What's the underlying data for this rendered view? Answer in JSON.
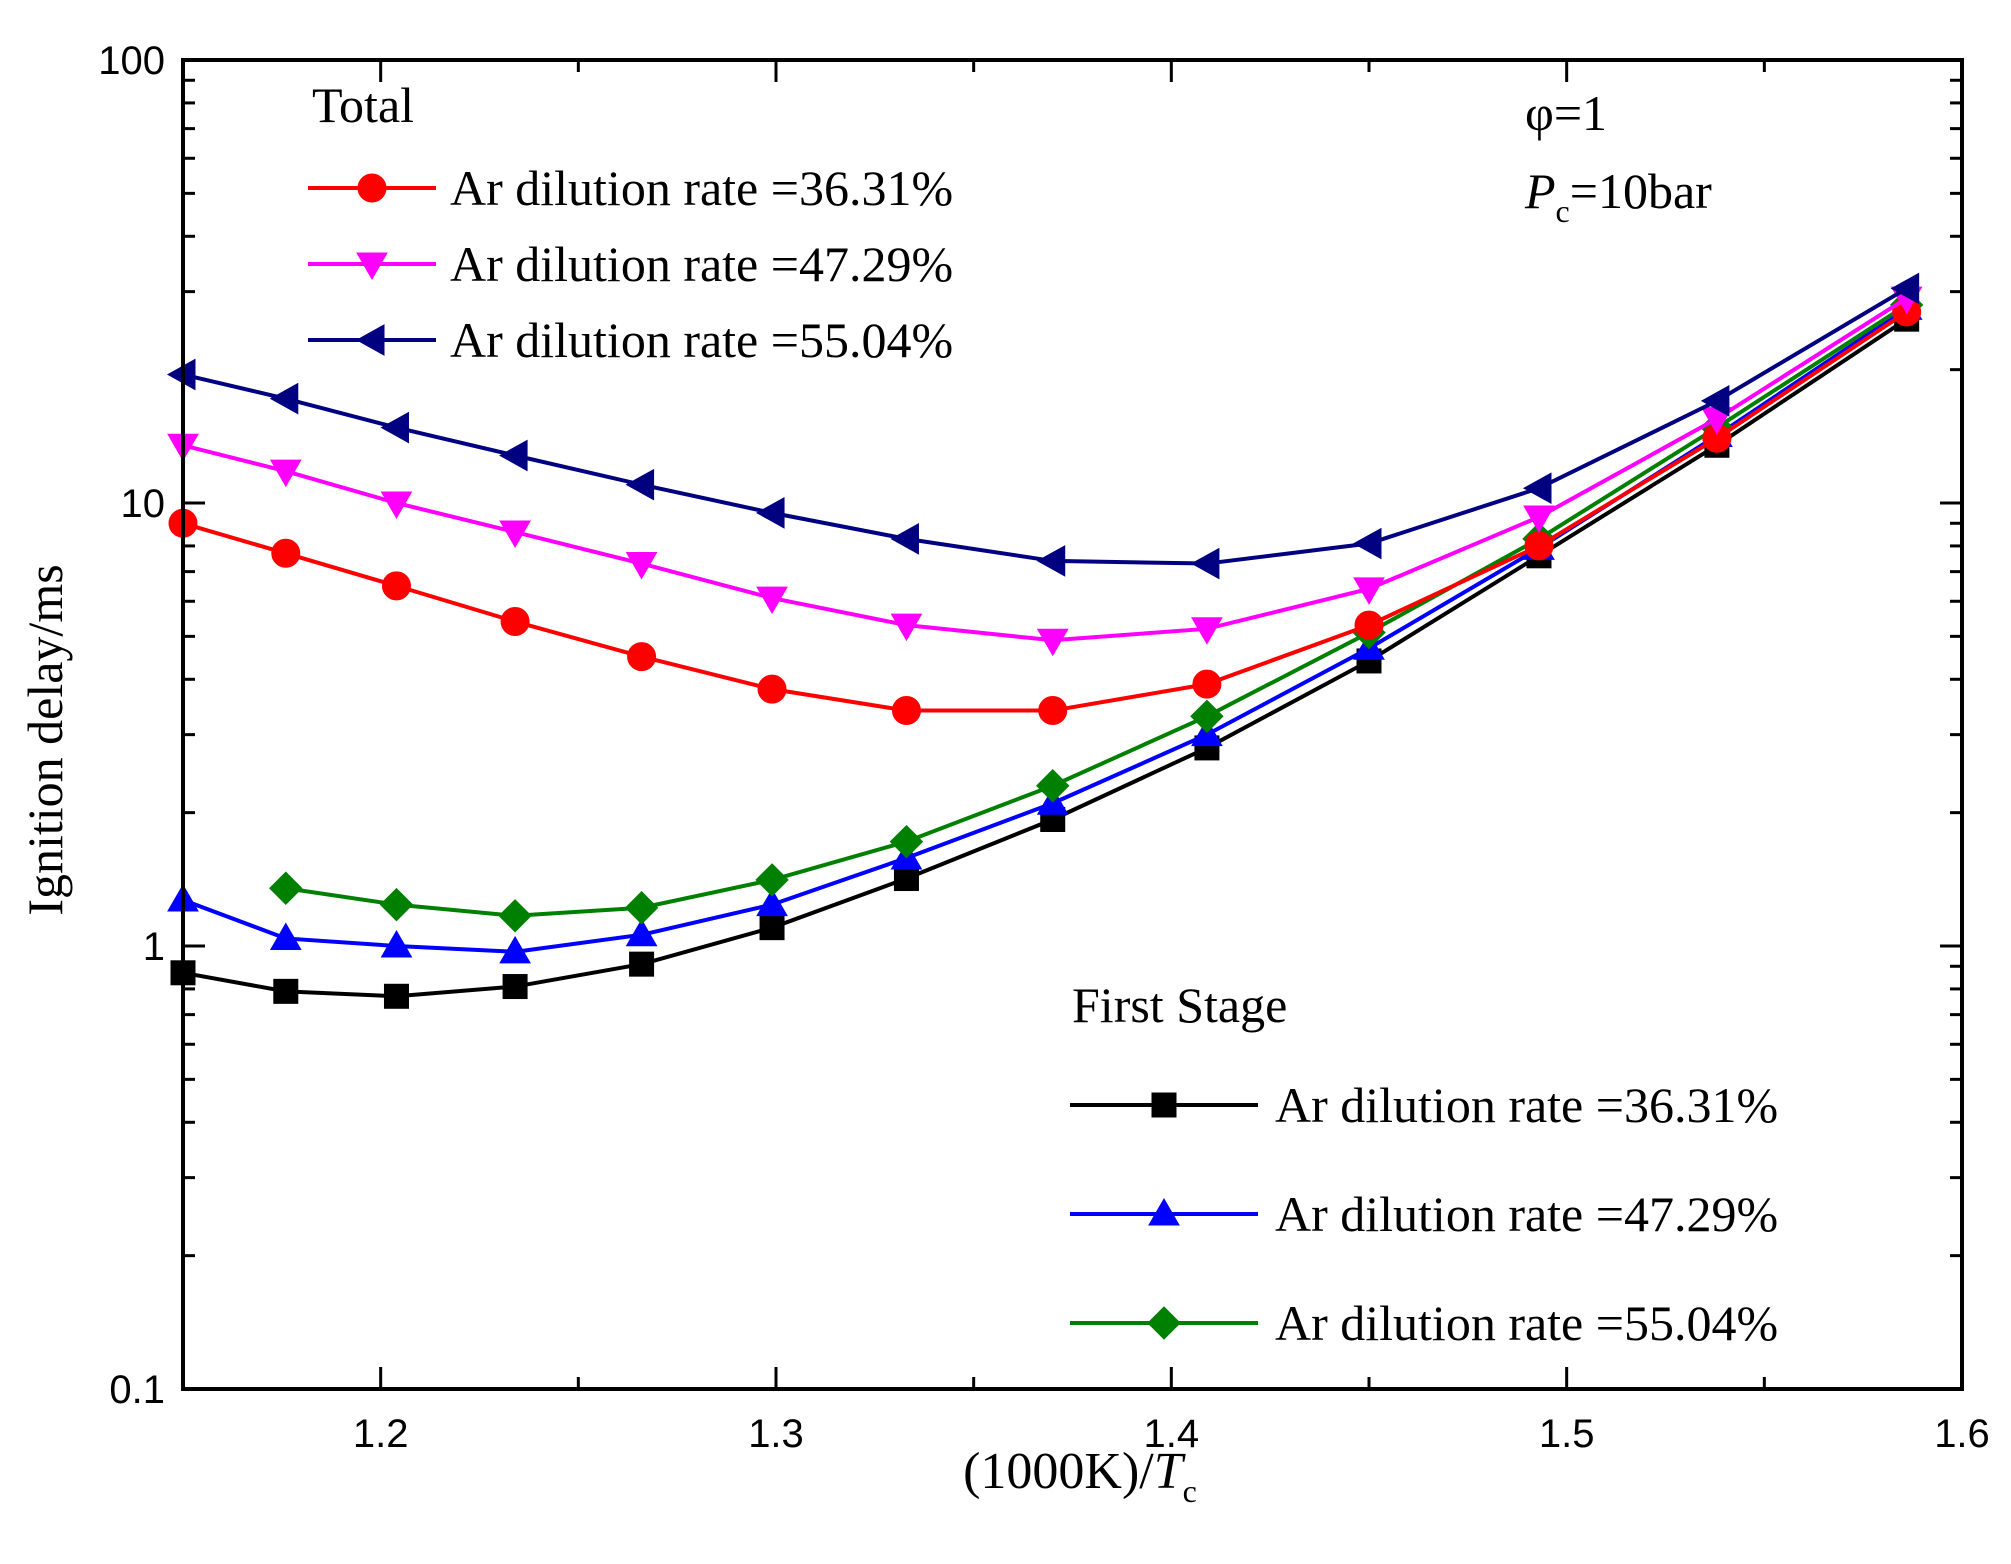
{
  "chart_data": {
    "type": "line",
    "title": "",
    "xlabel": {
      "prefix": "(1000K)/",
      "var": "T",
      "sub": "c"
    },
    "ylabel": "Ignition delay/ms",
    "xlim": [
      1.15,
      1.6
    ],
    "ylim": [
      0.1,
      100
    ],
    "yscale": "log",
    "x_ticks": [
      1.2,
      1.3,
      1.4,
      1.5,
      1.6
    ],
    "x_tick_labels": [
      "1.2",
      "1.3",
      "1.4",
      "1.5",
      "1.6"
    ],
    "y_ticks": [
      0.1,
      1,
      10,
      100
    ],
    "y_tick_labels": [
      "0.1",
      "1",
      "10",
      "100"
    ],
    "annotations": {
      "phi": "φ=1",
      "pressure": {
        "var": "P",
        "sub": "c",
        "text": "=10bar"
      }
    },
    "legend_groups": [
      {
        "title": "Total",
        "position": "top-left"
      },
      {
        "title": "First Stage",
        "position": "bottom-right"
      }
    ],
    "series": [
      {
        "name": "Ar dilution rate =36.31%",
        "group": "Total",
        "color": "#ff0000",
        "marker": "circle",
        "x": [
          1.15,
          1.176,
          1.204,
          1.234,
          1.266,
          1.299,
          1.333,
          1.37,
          1.409,
          1.45,
          1.493,
          1.538,
          1.586
        ],
        "y": [
          9.0,
          7.7,
          6.5,
          5.4,
          4.5,
          3.8,
          3.4,
          3.4,
          3.9,
          5.3,
          8.0,
          14.0,
          27.0
        ]
      },
      {
        "name": "Ar dilution rate =47.29%",
        "group": "Total",
        "color": "#ff00ff",
        "marker": "triangle-down",
        "x": [
          1.15,
          1.176,
          1.204,
          1.234,
          1.266,
          1.299,
          1.333,
          1.37,
          1.409,
          1.45,
          1.493,
          1.538,
          1.586
        ],
        "y": [
          13.5,
          11.8,
          10.0,
          8.6,
          7.3,
          6.1,
          5.3,
          4.9,
          5.2,
          6.4,
          9.3,
          15.5,
          29.0
        ]
      },
      {
        "name": "Ar dilution rate =55.04%",
        "group": "Total",
        "color": "#000080",
        "marker": "triangle-left",
        "x": [
          1.15,
          1.176,
          1.204,
          1.234,
          1.266,
          1.299,
          1.333,
          1.37,
          1.409,
          1.45,
          1.493,
          1.538,
          1.586
        ],
        "y": [
          19.5,
          17.2,
          14.8,
          12.8,
          11.0,
          9.5,
          8.3,
          7.4,
          7.3,
          8.1,
          10.8,
          17.0,
          30.5
        ]
      },
      {
        "name": "Ar dilution rate =36.31%",
        "group": "First Stage",
        "color": "#000000",
        "marker": "square",
        "x": [
          1.15,
          1.176,
          1.204,
          1.234,
          1.266,
          1.299,
          1.333,
          1.37,
          1.409,
          1.45,
          1.493,
          1.538,
          1.586
        ],
        "y": [
          0.87,
          0.79,
          0.77,
          0.81,
          0.91,
          1.1,
          1.42,
          1.93,
          2.8,
          4.4,
          7.6,
          13.5,
          26.0
        ]
      },
      {
        "name": "Ar dilution rate =47.29%",
        "group": "First Stage",
        "color": "#0000ff",
        "marker": "triangle-up",
        "x": [
          1.15,
          1.176,
          1.204,
          1.234,
          1.266,
          1.299,
          1.333,
          1.37,
          1.409,
          1.45,
          1.493,
          1.538,
          1.586
        ],
        "y": [
          1.27,
          1.04,
          1.0,
          0.97,
          1.06,
          1.24,
          1.58,
          2.1,
          3.0,
          4.7,
          7.9,
          14.2,
          27.5
        ]
      },
      {
        "name": "Ar dilution rate =55.04%",
        "group": "First Stage",
        "color": "#008000",
        "marker": "diamond",
        "x": [
          1.176,
          1.204,
          1.234,
          1.266,
          1.299,
          1.333,
          1.37,
          1.409,
          1.45,
          1.493,
          1.538,
          1.586
        ],
        "y": [
          1.35,
          1.24,
          1.17,
          1.22,
          1.41,
          1.72,
          2.3,
          3.3,
          5.1,
          8.3,
          14.8,
          28.0
        ]
      }
    ]
  }
}
